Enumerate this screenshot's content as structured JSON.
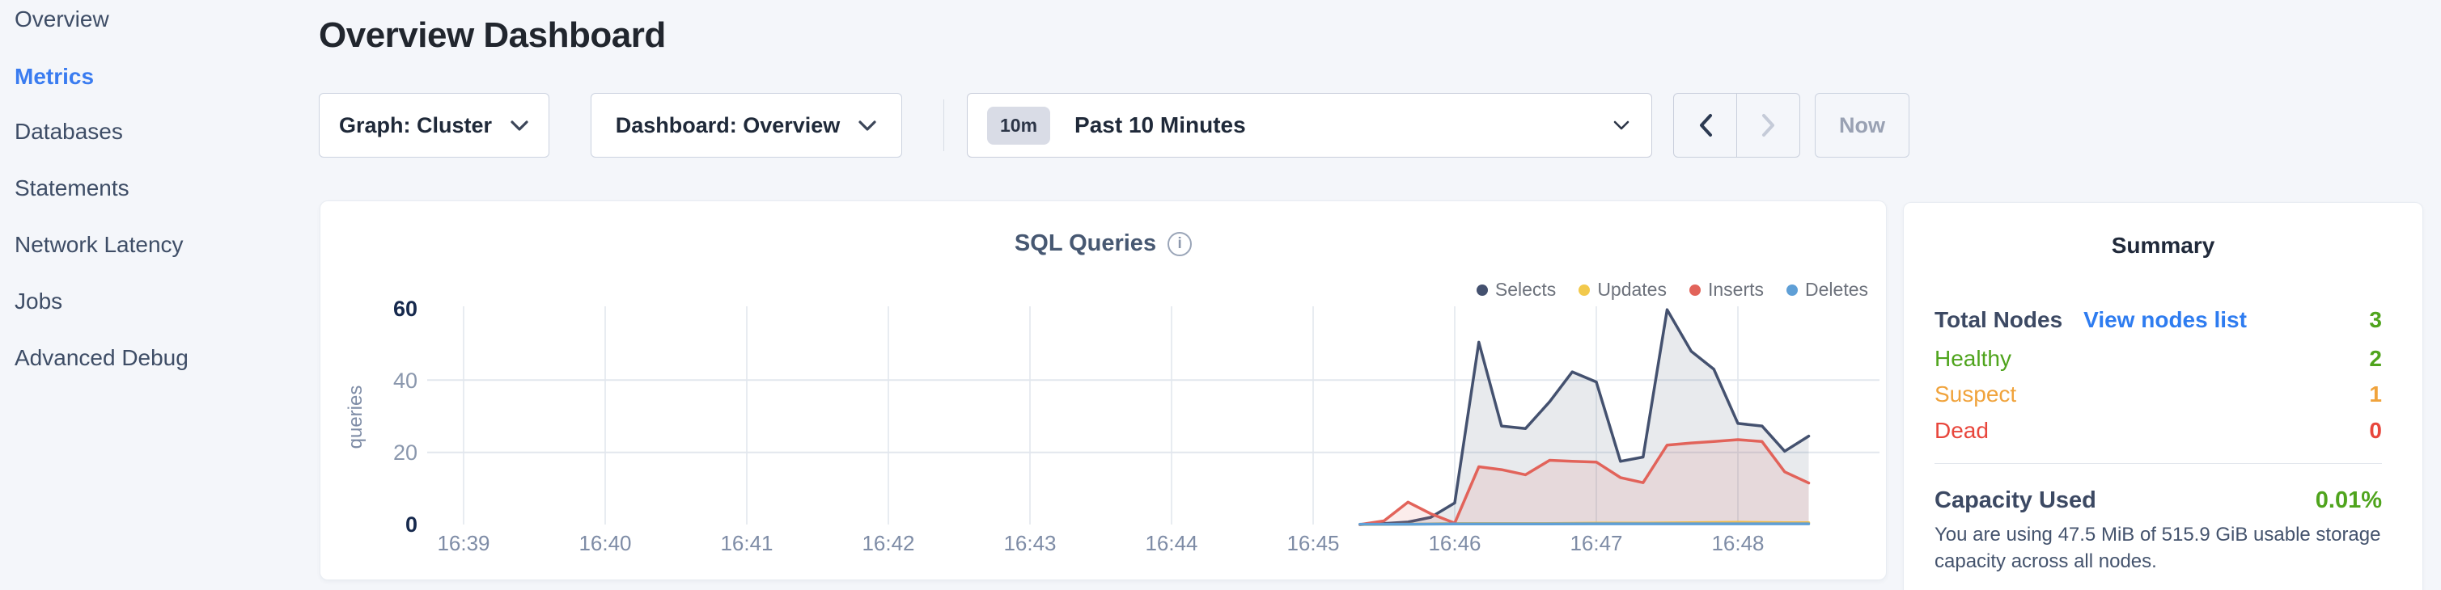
{
  "page": {
    "title": "Overview Dashboard"
  },
  "sidebar": {
    "items": [
      {
        "label": "Overview",
        "active": false
      },
      {
        "label": "Metrics",
        "active": true
      },
      {
        "label": "Databases",
        "active": false
      },
      {
        "label": "Statements",
        "active": false
      },
      {
        "label": "Network Latency",
        "active": false
      },
      {
        "label": "Jobs",
        "active": false
      },
      {
        "label": "Advanced Debug",
        "active": false
      }
    ]
  },
  "toolbar": {
    "graph_dropdown_label": "Graph: Cluster",
    "dashboard_dropdown_label": "Dashboard: Overview",
    "time_selector": {
      "badge": "10m",
      "label": "Past 10 Minutes"
    },
    "now_label": "Now"
  },
  "chart_data": {
    "type": "area",
    "title": "SQL Queries",
    "ylabel": "queries",
    "ylim": [
      0,
      60
    ],
    "y_ticks": [
      0,
      20,
      40,
      60
    ],
    "x_tick_labels": [
      "16:39",
      "16:40",
      "16:41",
      "16:42",
      "16:43",
      "16:44",
      "16:45",
      "16:46",
      "16:47",
      "16:48"
    ],
    "x_unit": "minutes after 16:39",
    "grid": {
      "horizontal_at": [
        20,
        40
      ],
      "vertical_at_each_tick": true
    },
    "legend_position": "top-right",
    "series": [
      {
        "name": "Selects",
        "color": "#44516f",
        "fill": "rgba(68,81,111,0.12)",
        "points": [
          [
            6.33,
            0
          ],
          [
            6.5,
            0.3
          ],
          [
            6.67,
            0.7
          ],
          [
            6.83,
            2
          ],
          [
            7.0,
            6
          ],
          [
            7.17,
            50.5
          ],
          [
            7.33,
            27.3
          ],
          [
            7.5,
            26.6
          ],
          [
            7.67,
            34
          ],
          [
            7.83,
            42.3
          ],
          [
            8.0,
            39.5
          ],
          [
            8.17,
            17.5
          ],
          [
            8.33,
            18.7
          ],
          [
            8.5,
            59.5
          ],
          [
            8.67,
            48
          ],
          [
            8.83,
            43
          ],
          [
            9.0,
            28
          ],
          [
            9.17,
            27.3
          ],
          [
            9.33,
            20.3
          ],
          [
            9.5,
            24.5
          ]
        ]
      },
      {
        "name": "Updates",
        "color": "#f2c94c",
        "fill": "rgba(242,201,76,0.10)",
        "points": [
          [
            6.33,
            0
          ],
          [
            6.67,
            0.1
          ],
          [
            7.0,
            0.3
          ],
          [
            7.33,
            0.3
          ],
          [
            7.67,
            0.3
          ],
          [
            8.0,
            0.4
          ],
          [
            8.33,
            0.4
          ],
          [
            8.67,
            0.5
          ],
          [
            9.0,
            0.6
          ],
          [
            9.33,
            0.5
          ],
          [
            9.5,
            0.5
          ]
        ]
      },
      {
        "name": "Inserts",
        "color": "#e2635a",
        "fill": "rgba(226,99,90,0.12)",
        "points": [
          [
            6.33,
            0
          ],
          [
            6.5,
            1
          ],
          [
            6.67,
            6.2
          ],
          [
            6.83,
            3
          ],
          [
            7.0,
            0.4
          ],
          [
            7.17,
            16
          ],
          [
            7.33,
            15.2
          ],
          [
            7.5,
            13.8
          ],
          [
            7.67,
            17.8
          ],
          [
            7.83,
            17.5
          ],
          [
            8.0,
            17.3
          ],
          [
            8.17,
            13
          ],
          [
            8.33,
            11.6
          ],
          [
            8.5,
            22
          ],
          [
            8.67,
            22.6
          ],
          [
            8.83,
            23
          ],
          [
            9.0,
            23.5
          ],
          [
            9.17,
            23
          ],
          [
            9.33,
            14.6
          ],
          [
            9.5,
            11.5
          ]
        ]
      },
      {
        "name": "Deletes",
        "color": "#5f9fd6",
        "fill": "rgba(95,159,214,0.10)",
        "points": [
          [
            6.33,
            0.1
          ],
          [
            6.67,
            0.1
          ],
          [
            7.0,
            0.15
          ],
          [
            7.5,
            0.15
          ],
          [
            8.0,
            0.2
          ],
          [
            8.5,
            0.2
          ],
          [
            9.0,
            0.2
          ],
          [
            9.5,
            0.2
          ]
        ]
      }
    ]
  },
  "summary": {
    "title": "Summary",
    "total_nodes_label": "Total Nodes",
    "view_nodes_link": "View nodes list",
    "total_nodes_value": "3",
    "node_statuses": [
      {
        "label": "Healthy",
        "value": "2",
        "color": "#4fa41d"
      },
      {
        "label": "Suspect",
        "value": "1",
        "color": "#f0a33c"
      },
      {
        "label": "Dead",
        "value": "0",
        "color": "#e8463c"
      }
    ],
    "capacity_label": "Capacity Used",
    "capacity_value": "0.01%",
    "capacity_note": "You are using 47.5 MiB of 515.9 GiB usable storage capacity across all nodes."
  },
  "colors": {
    "accent_blue": "#3a7cf0",
    "link_blue": "#2e7cf0",
    "green": "#4fa41d",
    "orange": "#f0a33c",
    "red": "#e8463c",
    "total_green": "#4fa41d",
    "grid_line": "#e6eaf0",
    "page_bg": "#f4f6fa"
  }
}
